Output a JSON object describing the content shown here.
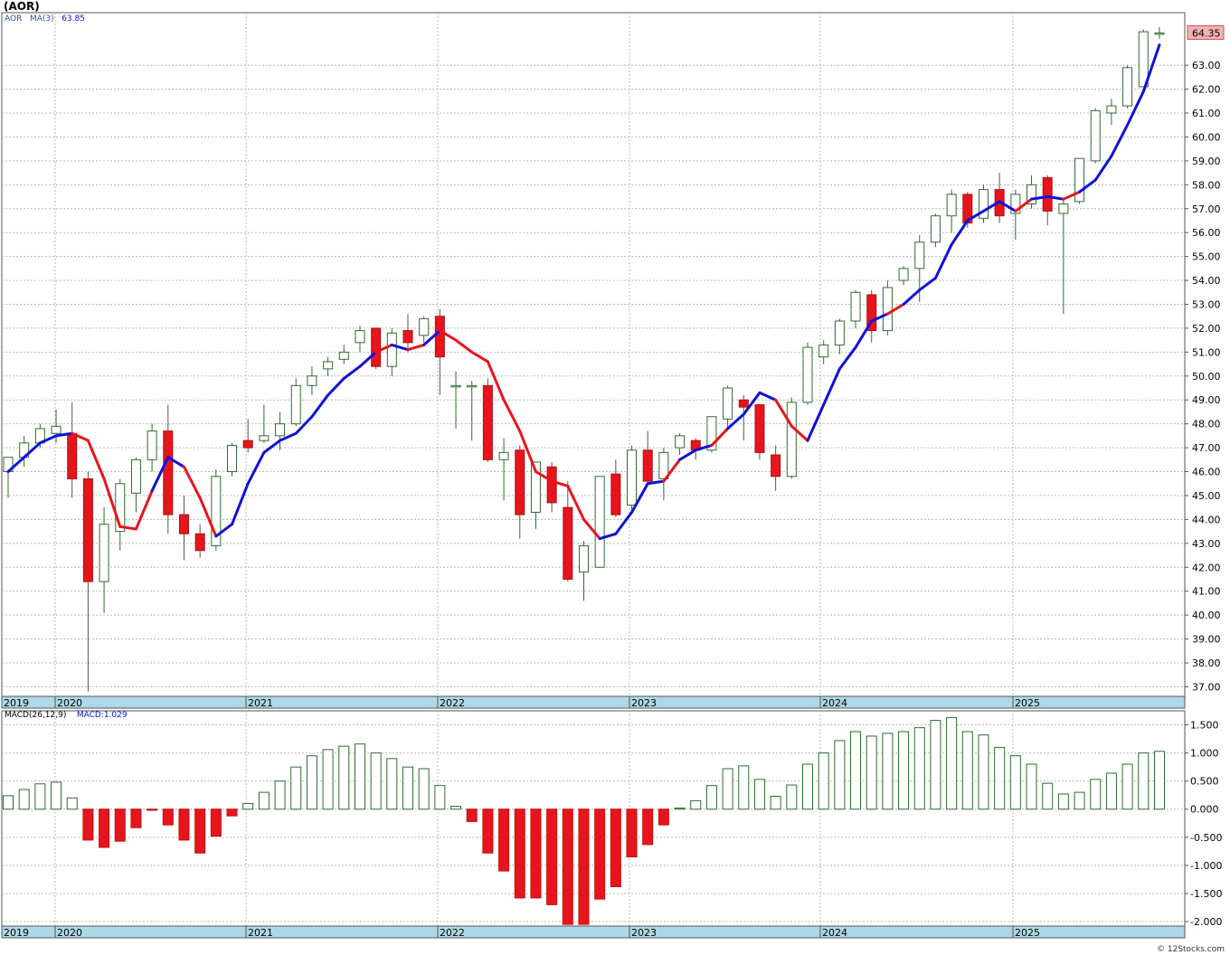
{
  "title": "(AOR)",
  "credit": "© 12Stocks.com",
  "price_legend": {
    "symbol": "AOR",
    "ma_label": "MA(3)",
    "ma_value": "63.85"
  },
  "macd_legend": {
    "label": "MACD(26,12,9)",
    "value_label": "MACD:1.029"
  },
  "last_price_label": "64.35",
  "colors": {
    "up_body": "#ffffff",
    "up_edge": "#2e6b2e",
    "down_body": "#e8141c",
    "ma_up": "#1010d8",
    "ma_down": "#e8141c",
    "axis_band": "#add8e6",
    "macd_pos_edge": "#2e6b2e",
    "macd_neg": "#e8141c",
    "last_price_bg": "#f4b3b3"
  },
  "chart_data": [
    {
      "type": "candlestick",
      "interval": "monthly",
      "ylim": [
        36.6,
        65.2
      ],
      "grid": true,
      "y_ticks": [
        "37.00",
        "38.00",
        "39.00",
        "40.00",
        "41.00",
        "42.00",
        "43.00",
        "44.00",
        "45.00",
        "46.00",
        "47.00",
        "48.00",
        "49.00",
        "50.00",
        "51.00",
        "52.00",
        "53.00",
        "54.00",
        "55.00",
        "56.00",
        "57.00",
        "58.00",
        "59.00",
        "60.00",
        "61.00",
        "62.00",
        "63.00"
      ],
      "x_labels": [
        "2019",
        "2020",
        "2021",
        "2022",
        "2023",
        "2024",
        "2025"
      ],
      "candles": [
        {
          "o": 46.0,
          "h": 46.6,
          "l": 44.9,
          "c": 46.6
        },
        {
          "o": 46.6,
          "h": 47.5,
          "l": 46.2,
          "c": 47.2
        },
        {
          "o": 47.2,
          "h": 48.0,
          "l": 47.0,
          "c": 47.8
        },
        {
          "o": 47.6,
          "h": 48.6,
          "l": 47.2,
          "c": 47.9
        },
        {
          "o": 47.6,
          "h": 48.9,
          "l": 44.9,
          "c": 45.7
        },
        {
          "o": 45.7,
          "h": 46.0,
          "l": 36.8,
          "c": 41.4
        },
        {
          "o": 41.4,
          "h": 44.5,
          "l": 40.1,
          "c": 43.8
        },
        {
          "o": 43.5,
          "h": 45.7,
          "l": 42.7,
          "c": 45.5
        },
        {
          "o": 45.1,
          "h": 46.6,
          "l": 44.3,
          "c": 46.5
        },
        {
          "o": 46.5,
          "h": 48.0,
          "l": 46.0,
          "c": 47.7
        },
        {
          "o": 47.7,
          "h": 48.8,
          "l": 43.4,
          "c": 44.2
        },
        {
          "o": 44.2,
          "h": 45.0,
          "l": 42.3,
          "c": 43.4
        },
        {
          "o": 43.4,
          "h": 43.8,
          "l": 42.4,
          "c": 42.7
        },
        {
          "o": 42.9,
          "h": 46.1,
          "l": 42.7,
          "c": 45.8
        },
        {
          "o": 46.0,
          "h": 47.2,
          "l": 45.8,
          "c": 47.1
        },
        {
          "o": 47.3,
          "h": 48.2,
          "l": 46.8,
          "c": 47.0
        },
        {
          "o": 47.3,
          "h": 48.8,
          "l": 47.2,
          "c": 47.5
        },
        {
          "o": 47.5,
          "h": 48.5,
          "l": 46.9,
          "c": 48.0
        },
        {
          "o": 48.0,
          "h": 49.9,
          "l": 47.9,
          "c": 49.6
        },
        {
          "o": 49.6,
          "h": 50.4,
          "l": 49.2,
          "c": 50.0
        },
        {
          "o": 50.3,
          "h": 50.8,
          "l": 50.0,
          "c": 50.6
        },
        {
          "o": 50.7,
          "h": 51.3,
          "l": 50.5,
          "c": 51.0
        },
        {
          "o": 51.4,
          "h": 52.1,
          "l": 51.0,
          "c": 51.9
        },
        {
          "o": 52.0,
          "h": 52.0,
          "l": 50.3,
          "c": 50.4
        },
        {
          "o": 50.4,
          "h": 52.0,
          "l": 50.0,
          "c": 51.8
        },
        {
          "o": 51.9,
          "h": 52.6,
          "l": 51.0,
          "c": 51.4
        },
        {
          "o": 51.7,
          "h": 52.5,
          "l": 51.4,
          "c": 52.4
        },
        {
          "o": 52.5,
          "h": 52.8,
          "l": 49.2,
          "c": 50.8
        },
        {
          "o": 49.6,
          "h": 50.2,
          "l": 47.8,
          "c": 49.6
        },
        {
          "o": 49.6,
          "h": 49.8,
          "l": 47.3,
          "c": 49.6
        },
        {
          "o": 49.6,
          "h": 49.9,
          "l": 46.4,
          "c": 46.5
        },
        {
          "o": 46.5,
          "h": 47.4,
          "l": 44.8,
          "c": 46.8
        },
        {
          "o": 46.9,
          "h": 47.1,
          "l": 43.2,
          "c": 44.2
        },
        {
          "o": 44.3,
          "h": 46.4,
          "l": 43.6,
          "c": 46.4
        },
        {
          "o": 46.2,
          "h": 46.4,
          "l": 44.3,
          "c": 44.7
        },
        {
          "o": 44.5,
          "h": 45.6,
          "l": 41.4,
          "c": 41.5
        },
        {
          "o": 41.8,
          "h": 43.1,
          "l": 40.6,
          "c": 42.9
        },
        {
          "o": 42.0,
          "h": 45.8,
          "l": 42.0,
          "c": 45.8
        },
        {
          "o": 45.9,
          "h": 46.5,
          "l": 44.1,
          "c": 44.2
        },
        {
          "o": 44.6,
          "h": 47.1,
          "l": 44.3,
          "c": 46.9
        },
        {
          "o": 46.9,
          "h": 47.7,
          "l": 45.4,
          "c": 45.6
        },
        {
          "o": 45.7,
          "h": 47.0,
          "l": 44.8,
          "c": 46.8
        },
        {
          "o": 47.0,
          "h": 47.6,
          "l": 46.7,
          "c": 47.5
        },
        {
          "o": 47.3,
          "h": 47.4,
          "l": 46.5,
          "c": 46.9
        },
        {
          "o": 46.9,
          "h": 48.2,
          "l": 46.8,
          "c": 48.3
        },
        {
          "o": 48.2,
          "h": 49.6,
          "l": 47.8,
          "c": 49.5
        },
        {
          "o": 49.0,
          "h": 49.2,
          "l": 47.3,
          "c": 48.7
        },
        {
          "o": 48.8,
          "h": 48.8,
          "l": 46.5,
          "c": 46.8
        },
        {
          "o": 46.7,
          "h": 47.1,
          "l": 45.2,
          "c": 45.8
        },
        {
          "o": 45.8,
          "h": 49.1,
          "l": 45.7,
          "c": 48.9
        },
        {
          "o": 48.9,
          "h": 51.4,
          "l": 48.8,
          "c": 51.2
        },
        {
          "o": 50.8,
          "h": 51.5,
          "l": 50.5,
          "c": 51.3
        },
        {
          "o": 51.3,
          "h": 52.4,
          "l": 50.9,
          "c": 52.3
        },
        {
          "o": 52.3,
          "h": 53.6,
          "l": 52.0,
          "c": 53.5
        },
        {
          "o": 53.4,
          "h": 53.6,
          "l": 51.4,
          "c": 51.9
        },
        {
          "o": 51.9,
          "h": 54.0,
          "l": 51.7,
          "c": 53.7
        },
        {
          "o": 54.0,
          "h": 54.6,
          "l": 53.8,
          "c": 54.5
        },
        {
          "o": 54.5,
          "h": 55.9,
          "l": 53.1,
          "c": 55.6
        },
        {
          "o": 55.6,
          "h": 56.8,
          "l": 55.4,
          "c": 56.7
        },
        {
          "o": 56.7,
          "h": 57.8,
          "l": 56.0,
          "c": 57.6
        },
        {
          "o": 57.6,
          "h": 57.7,
          "l": 56.2,
          "c": 56.4
        },
        {
          "o": 56.6,
          "h": 58.0,
          "l": 56.4,
          "c": 57.8
        },
        {
          "o": 57.8,
          "h": 58.5,
          "l": 56.4,
          "c": 56.7
        },
        {
          "o": 56.8,
          "h": 57.8,
          "l": 55.7,
          "c": 57.6
        },
        {
          "o": 57.2,
          "h": 58.4,
          "l": 57.0,
          "c": 58.0
        },
        {
          "o": 58.3,
          "h": 58.4,
          "l": 56.3,
          "c": 56.9
        },
        {
          "o": 56.8,
          "h": 57.4,
          "l": 52.6,
          "c": 57.2
        },
        {
          "o": 57.3,
          "h": 59.1,
          "l": 57.2,
          "c": 59.1
        },
        {
          "o": 59.0,
          "h": 61.2,
          "l": 58.9,
          "c": 61.1
        },
        {
          "o": 61.0,
          "h": 61.6,
          "l": 60.5,
          "c": 61.3
        },
        {
          "o": 61.3,
          "h": 63.0,
          "l": 61.2,
          "c": 62.9
        },
        {
          "o": 62.1,
          "h": 64.5,
          "l": 62.1,
          "c": 64.4
        },
        {
          "o": 64.35,
          "h": 64.6,
          "l": 64.1,
          "c": 64.35
        }
      ],
      "ma3": [
        46.0,
        46.6,
        47.2,
        47.5,
        47.6,
        47.3,
        45.7,
        43.7,
        43.6,
        45.2,
        46.6,
        46.2,
        44.9,
        43.3,
        43.8,
        45.5,
        46.8,
        47.3,
        47.6,
        48.3,
        49.2,
        49.9,
        50.4,
        51.0,
        51.3,
        51.1,
        51.3,
        51.9,
        51.5,
        51.0,
        50.6,
        49.0,
        47.7,
        46.0,
        45.6,
        45.4,
        44.0,
        43.2,
        43.4,
        44.3,
        45.5,
        45.6,
        46.5,
        46.9,
        47.1,
        47.8,
        48.4,
        49.3,
        49.0,
        47.9,
        47.3,
        48.8,
        50.3,
        51.2,
        52.3,
        52.6,
        53.0,
        53.6,
        54.1,
        55.5,
        56.5,
        56.9,
        57.3,
        56.9,
        57.4,
        57.5,
        57.4,
        57.7,
        58.2,
        59.2,
        60.5,
        61.9,
        63.85
      ],
      "ma3_trend": [
        "u",
        "u",
        "u",
        "u",
        "d",
        "d",
        "d",
        "d",
        "d",
        "u",
        "u",
        "d",
        "d",
        "u",
        "u",
        "u",
        "u",
        "u",
        "u",
        "u",
        "u",
        "u",
        "u",
        "d",
        "u",
        "d",
        "u",
        "d",
        "d",
        "d",
        "d",
        "d",
        "d",
        "d",
        "d",
        "d",
        "d",
        "u",
        "u",
        "u",
        "u",
        "d",
        "u",
        "u",
        "d",
        "u",
        "u",
        "u",
        "d",
        "d",
        "u",
        "u",
        "u",
        "u",
        "u",
        "d",
        "u",
        "u",
        "u",
        "u",
        "u",
        "u",
        "u",
        "d",
        "u",
        "u",
        "d",
        "u",
        "u",
        "u",
        "u",
        "u",
        "u"
      ]
    },
    {
      "type": "bar",
      "title": "MACD(26,12,9)",
      "ylim": [
        -2.08,
        1.75
      ],
      "y_ticks": [
        "1.500",
        "1.000",
        "0.500",
        "0.000",
        "-0.500",
        "-1.000",
        "-1.500",
        "-2.000"
      ],
      "x_labels": [
        "2019",
        "2020",
        "2021",
        "2022",
        "2023",
        "2024",
        "2025"
      ],
      "values": [
        0.24,
        0.35,
        0.45,
        0.48,
        0.2,
        -0.55,
        -0.68,
        -0.57,
        -0.33,
        -0.02,
        -0.28,
        -0.55,
        -0.78,
        -0.48,
        -0.12,
        0.1,
        0.3,
        0.5,
        0.75,
        0.95,
        1.06,
        1.12,
        1.16,
        1.0,
        0.9,
        0.75,
        0.72,
        0.42,
        0.05,
        -0.22,
        -0.78,
        -1.1,
        -1.58,
        -1.58,
        -1.7,
        -2.05,
        -2.05,
        -1.6,
        -1.38,
        -0.85,
        -0.63,
        -0.28,
        0.02,
        0.15,
        0.42,
        0.72,
        0.77,
        0.53,
        0.23,
        0.43,
        0.8,
        1.0,
        1.22,
        1.38,
        1.3,
        1.35,
        1.38,
        1.45,
        1.58,
        1.63,
        1.38,
        1.32,
        1.1,
        0.95,
        0.8,
        0.46,
        0.27,
        0.3,
        0.53,
        0.64,
        0.8,
        1.0,
        1.029
      ]
    }
  ]
}
